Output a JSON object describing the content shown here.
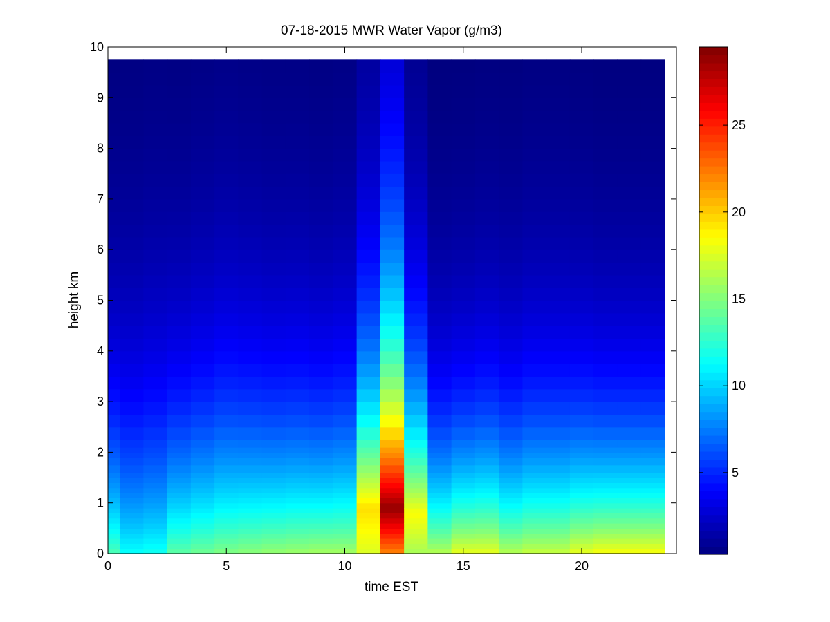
{
  "chart_data": {
    "type": "heatmap",
    "title": "07-18-2015 MWR Water Vapor (g/m3)",
    "xlabel": "time EST",
    "ylabel": "height km",
    "xlim": [
      0,
      24
    ],
    "ylim": [
      0,
      10
    ],
    "xticks": [
      0,
      5,
      10,
      15,
      20
    ],
    "yticks": [
      0,
      1,
      2,
      3,
      4,
      5,
      6,
      7,
      8,
      9,
      10
    ],
    "colorbar": {
      "colormap": "jet",
      "range": [
        0.3,
        29.5
      ],
      "ticks": [
        5,
        10,
        15,
        20,
        25
      ]
    },
    "data_extent": {
      "x": [
        0,
        23.5
      ],
      "y": [
        0,
        9.75
      ]
    },
    "x": [
      0,
      0.5,
      1.5,
      2.5,
      3.5,
      4.5,
      5.5,
      6.5,
      7.5,
      8.5,
      9.5,
      10.5,
      11.5,
      12.5,
      13.5,
      14.5,
      15.5,
      16.5,
      17.5,
      18.5,
      19.5,
      20.5,
      21.5,
      22.5,
      23.5
    ],
    "heights_km": [
      0.0,
      0.1,
      0.2,
      0.3,
      0.4,
      0.5,
      0.6,
      0.7,
      0.8,
      0.9,
      1.0,
      1.1,
      1.2,
      1.3,
      1.4,
      1.5,
      1.6,
      1.75,
      1.9,
      2.0,
      2.1,
      2.25,
      2.5,
      2.75,
      3.0,
      3.25,
      3.5,
      3.75,
      4.0,
      4.25,
      4.5,
      4.75,
      5.0,
      5.25,
      5.5,
      5.75,
      6.0,
      6.25,
      6.5,
      6.75,
      7.0,
      7.25,
      7.5,
      7.75,
      8.0,
      8.25,
      8.5,
      8.75,
      9.0,
      9.25,
      9.5,
      9.75
    ],
    "profiles": [
      {
        "surface": 13.5,
        "max": 13.5,
        "peak_height": 0.0,
        "scale_height": 2.7
      },
      {
        "surface": 11.5,
        "max": 11.5,
        "peak_height": 0.0,
        "scale_height": 2.9
      },
      {
        "surface": 11.8,
        "max": 11.8,
        "peak_height": 0.0,
        "scale_height": 3.0
      },
      {
        "surface": 14.0,
        "max": 14.0,
        "peak_height": 0.0,
        "scale_height": 2.8
      },
      {
        "surface": 14.5,
        "max": 14.5,
        "peak_height": 0.0,
        "scale_height": 2.9
      },
      {
        "surface": 15.0,
        "max": 15.0,
        "peak_height": 0.0,
        "scale_height": 3.0
      },
      {
        "surface": 15.3,
        "max": 15.3,
        "peak_height": 0.0,
        "scale_height": 2.9
      },
      {
        "surface": 15.6,
        "max": 15.6,
        "peak_height": 0.0,
        "scale_height": 2.8
      },
      {
        "surface": 15.8,
        "max": 15.8,
        "peak_height": 0.0,
        "scale_height": 2.8
      },
      {
        "surface": 16.0,
        "max": 16.0,
        "peak_height": 0.0,
        "scale_height": 2.7
      },
      {
        "surface": 16.0,
        "max": 16.0,
        "peak_height": 0.0,
        "scale_height": 2.8
      },
      {
        "surface": 17.5,
        "max": 19.5,
        "peak_height": 0.9,
        "scale_height": 3.2
      },
      {
        "surface": 22.0,
        "max": 29.0,
        "peak_height": 0.9,
        "scale_height": 3.8
      },
      {
        "surface": 16.0,
        "max": 18.5,
        "peak_height": 0.8,
        "scale_height": 2.9
      },
      {
        "surface": 16.5,
        "max": 16.5,
        "peak_height": 0.0,
        "scale_height": 2.4
      },
      {
        "surface": 18.0,
        "max": 18.0,
        "peak_height": 0.0,
        "scale_height": 2.4
      },
      {
        "surface": 18.0,
        "max": 18.0,
        "peak_height": 0.0,
        "scale_height": 2.5
      },
      {
        "surface": 16.5,
        "max": 16.5,
        "peak_height": 0.0,
        "scale_height": 2.5
      },
      {
        "surface": 17.0,
        "max": 17.0,
        "peak_height": 0.0,
        "scale_height": 2.6
      },
      {
        "surface": 17.0,
        "max": 17.0,
        "peak_height": 0.0,
        "scale_height": 2.6
      },
      {
        "surface": 18.0,
        "max": 18.0,
        "peak_height": 0.0,
        "scale_height": 2.5
      },
      {
        "surface": 18.5,
        "max": 18.5,
        "peak_height": 0.0,
        "scale_height": 2.4
      },
      {
        "surface": 18.5,
        "max": 18.5,
        "peak_height": 0.0,
        "scale_height": 2.4
      },
      {
        "surface": 18.5,
        "max": 18.5,
        "peak_height": 0.0,
        "scale_height": 2.4
      }
    ]
  }
}
